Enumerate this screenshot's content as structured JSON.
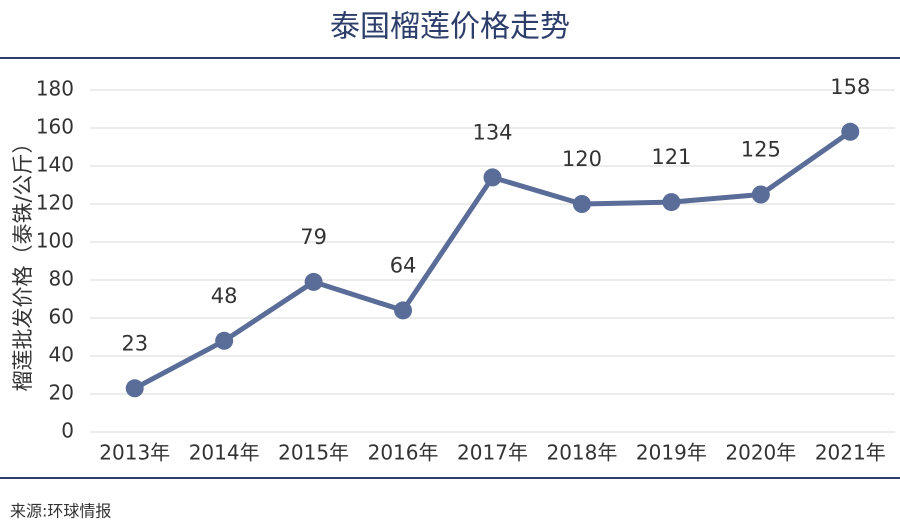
{
  "chart_data": {
    "type": "line",
    "title": "泰国榴莲价格走势",
    "y_label": "榴莲批发价格（泰铢/公斤）",
    "categories": [
      "2013年",
      "2014年",
      "2015年",
      "2016年",
      "2017年",
      "2018年",
      "2019年",
      "2020年",
      "2021年"
    ],
    "values": [
      23,
      48,
      79,
      64,
      134,
      120,
      121,
      125,
      158
    ],
    "color": "#5a6d98",
    "ylim": [
      0,
      180
    ],
    "yticks": [
      0,
      20,
      40,
      60,
      80,
      100,
      120,
      140,
      160,
      180
    ],
    "grid": true,
    "source": "来源:环球情报"
  }
}
